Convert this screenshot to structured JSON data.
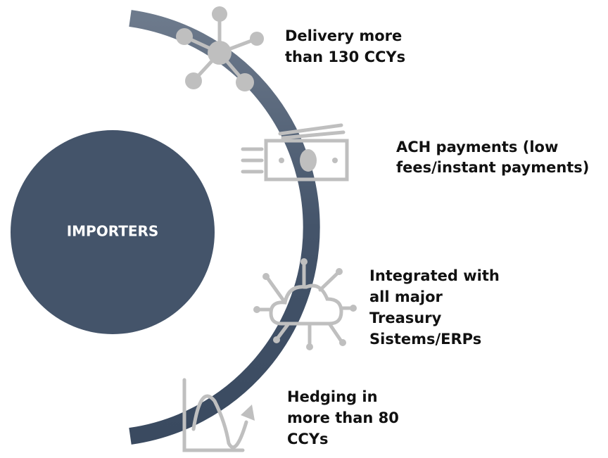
{
  "center": {
    "label": "IMPORTERS"
  },
  "items": [
    {
      "lines": [
        "Delivery more",
        "than 130 CCYs"
      ]
    },
    {
      "lines": [
        "ACH payments (low",
        "fees/instant payments)"
      ]
    },
    {
      "lines": [
        "Integrated with",
        "all major",
        "Treasury",
        "Sistems/ERPs"
      ]
    },
    {
      "lines": [
        "Hedging in",
        "more than 80",
        "CCYs"
      ]
    }
  ]
}
